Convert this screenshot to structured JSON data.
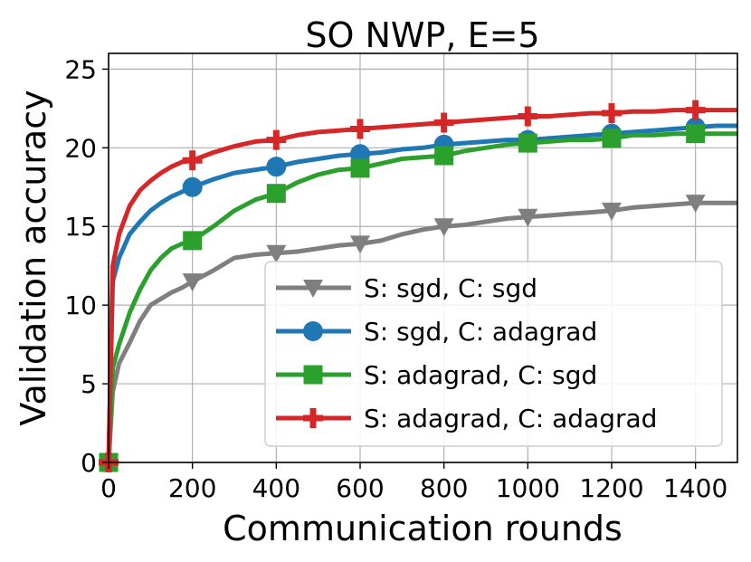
{
  "chart_data": {
    "type": "line",
    "title": "SO NWP, E=5",
    "xlabel": "Communication rounds",
    "ylabel": "Validation accuracy",
    "xlim": [
      0,
      1500
    ],
    "ylim": [
      0,
      26
    ],
    "xticks": [
      0,
      200,
      400,
      600,
      800,
      1000,
      1200,
      1400
    ],
    "yticks": [
      0,
      5,
      10,
      15,
      20,
      25
    ],
    "grid": true,
    "legend_position": "lower-right",
    "series": [
      {
        "name": "S: sgd, C: sgd",
        "color": "#7f7f7f",
        "marker": "triangle-down",
        "x": [
          0,
          10,
          25,
          50,
          75,
          100,
          125,
          150,
          175,
          200,
          250,
          300,
          350,
          400,
          450,
          500,
          550,
          600,
          650,
          700,
          750,
          800,
          850,
          900,
          950,
          1000,
          1050,
          1100,
          1150,
          1200,
          1250,
          1300,
          1350,
          1400,
          1450,
          1500
        ],
        "values": [
          0,
          4.5,
          6.3,
          7.6,
          9.0,
          10.0,
          10.4,
          10.8,
          11.1,
          11.5,
          12.2,
          13.0,
          13.2,
          13.3,
          13.4,
          13.6,
          13.8,
          13.9,
          14.1,
          14.5,
          14.8,
          15.0,
          15.1,
          15.3,
          15.5,
          15.6,
          15.7,
          15.8,
          15.9,
          16.0,
          16.2,
          16.3,
          16.4,
          16.5,
          16.5,
          16.5
        ],
        "marker_x": [
          0,
          200,
          400,
          600,
          800,
          1000,
          1200,
          1400
        ]
      },
      {
        "name": "S: sgd, C: adagrad",
        "color": "#1f77b4",
        "marker": "circle",
        "x": [
          0,
          10,
          25,
          50,
          75,
          100,
          125,
          150,
          175,
          200,
          250,
          300,
          350,
          400,
          450,
          500,
          550,
          600,
          650,
          700,
          750,
          800,
          850,
          900,
          950,
          1000,
          1050,
          1100,
          1150,
          1200,
          1250,
          1300,
          1350,
          1400,
          1450,
          1500
        ],
        "values": [
          0,
          11.5,
          13.0,
          14.5,
          15.3,
          16.0,
          16.5,
          16.9,
          17.2,
          17.5,
          18.0,
          18.4,
          18.6,
          18.8,
          19.1,
          19.3,
          19.5,
          19.6,
          19.7,
          19.9,
          20.0,
          20.2,
          20.3,
          20.4,
          20.5,
          20.5,
          20.6,
          20.7,
          20.8,
          20.9,
          21.0,
          21.1,
          21.2,
          21.3,
          21.4,
          21.4
        ],
        "marker_x": [
          0,
          200,
          400,
          600,
          800,
          1000,
          1200,
          1400
        ]
      },
      {
        "name": "S: adagrad, C: sgd",
        "color": "#2ca02c",
        "marker": "square",
        "x": [
          0,
          10,
          25,
          50,
          75,
          100,
          125,
          150,
          175,
          200,
          250,
          300,
          350,
          400,
          450,
          500,
          550,
          600,
          650,
          700,
          750,
          800,
          850,
          900,
          950,
          1000,
          1050,
          1100,
          1150,
          1200,
          1250,
          1300,
          1350,
          1400,
          1450,
          1500
        ],
        "values": [
          0,
          6.0,
          7.5,
          9.5,
          11.0,
          12.2,
          13.0,
          13.6,
          13.9,
          14.1,
          15.0,
          16.0,
          16.7,
          17.1,
          17.8,
          18.3,
          18.6,
          18.7,
          19.0,
          19.3,
          19.4,
          19.5,
          19.8,
          20.0,
          20.2,
          20.3,
          20.4,
          20.5,
          20.5,
          20.6,
          20.8,
          20.8,
          20.9,
          20.9,
          20.9,
          20.9
        ],
        "marker_x": [
          0,
          200,
          400,
          600,
          800,
          1000,
          1200,
          1400
        ]
      },
      {
        "name": "S: adagrad, C: adagrad",
        "color": "#d62728",
        "marker": "plus",
        "x": [
          0,
          10,
          25,
          50,
          75,
          100,
          125,
          150,
          175,
          200,
          250,
          300,
          350,
          400,
          450,
          500,
          550,
          600,
          650,
          700,
          750,
          800,
          850,
          900,
          950,
          1000,
          1050,
          1100,
          1150,
          1200,
          1250,
          1300,
          1350,
          1400,
          1450,
          1500
        ],
        "values": [
          0,
          12.5,
          14.5,
          16.3,
          17.3,
          17.9,
          18.4,
          18.8,
          19.1,
          19.2,
          19.7,
          20.1,
          20.4,
          20.5,
          20.8,
          21.0,
          21.1,
          21.2,
          21.3,
          21.4,
          21.5,
          21.6,
          21.7,
          21.8,
          21.9,
          22.0,
          22.0,
          22.1,
          22.2,
          22.2,
          22.3,
          22.3,
          22.4,
          22.4,
          22.4,
          22.4
        ],
        "marker_x": [
          0,
          200,
          400,
          600,
          800,
          1000,
          1200,
          1400
        ]
      }
    ]
  }
}
